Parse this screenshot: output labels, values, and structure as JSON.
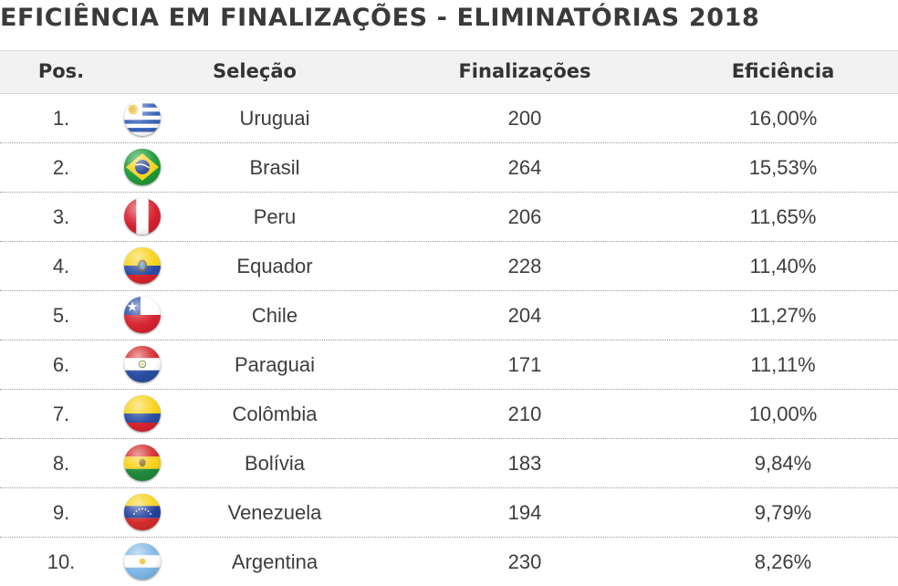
{
  "title": "EFICIÊNCIA EM FINALIZAÇÕES - ELIMINATÓRIAS 2018",
  "table": {
    "headers": {
      "pos": "Pos.",
      "team": "Seleção",
      "shots": "Finalizações",
      "efficiency": "Eficiência"
    },
    "rows": [
      {
        "pos": "1.",
        "team": "Uruguai",
        "flag_icon": "uruguay-flag-icon",
        "shots": "200",
        "efficiency": "16,00%"
      },
      {
        "pos": "2.",
        "team": "Brasil",
        "flag_icon": "brazil-flag-icon",
        "shots": "264",
        "efficiency": "15,53%"
      },
      {
        "pos": "3.",
        "team": "Peru",
        "flag_icon": "peru-flag-icon",
        "shots": "206",
        "efficiency": "11,65%"
      },
      {
        "pos": "4.",
        "team": "Equador",
        "flag_icon": "ecuador-flag-icon",
        "shots": "228",
        "efficiency": "11,40%"
      },
      {
        "pos": "5.",
        "team": "Chile",
        "flag_icon": "chile-flag-icon",
        "shots": "204",
        "efficiency": "11,27%"
      },
      {
        "pos": "6.",
        "team": "Paraguai",
        "flag_icon": "paraguay-flag-icon",
        "shots": "171",
        "efficiency": "11,11%"
      },
      {
        "pos": "7.",
        "team": "Colômbia",
        "flag_icon": "colombia-flag-icon",
        "shots": "210",
        "efficiency": "10,00%"
      },
      {
        "pos": "8.",
        "team": "Bolívia",
        "flag_icon": "bolivia-flag-icon",
        "shots": "183",
        "efficiency": "9,84%"
      },
      {
        "pos": "9.",
        "team": "Venezuela",
        "flag_icon": "venezuela-flag-icon",
        "shots": "194",
        "efficiency": "9,79%"
      },
      {
        "pos": "10.",
        "team": "Argentina",
        "flag_icon": "argentina-flag-icon",
        "shots": "230",
        "efficiency": "8,26%"
      }
    ]
  },
  "colors": {
    "header_bg": "#f2f2f2",
    "text": "#3d3d3d",
    "title": "#3a3a3a"
  }
}
